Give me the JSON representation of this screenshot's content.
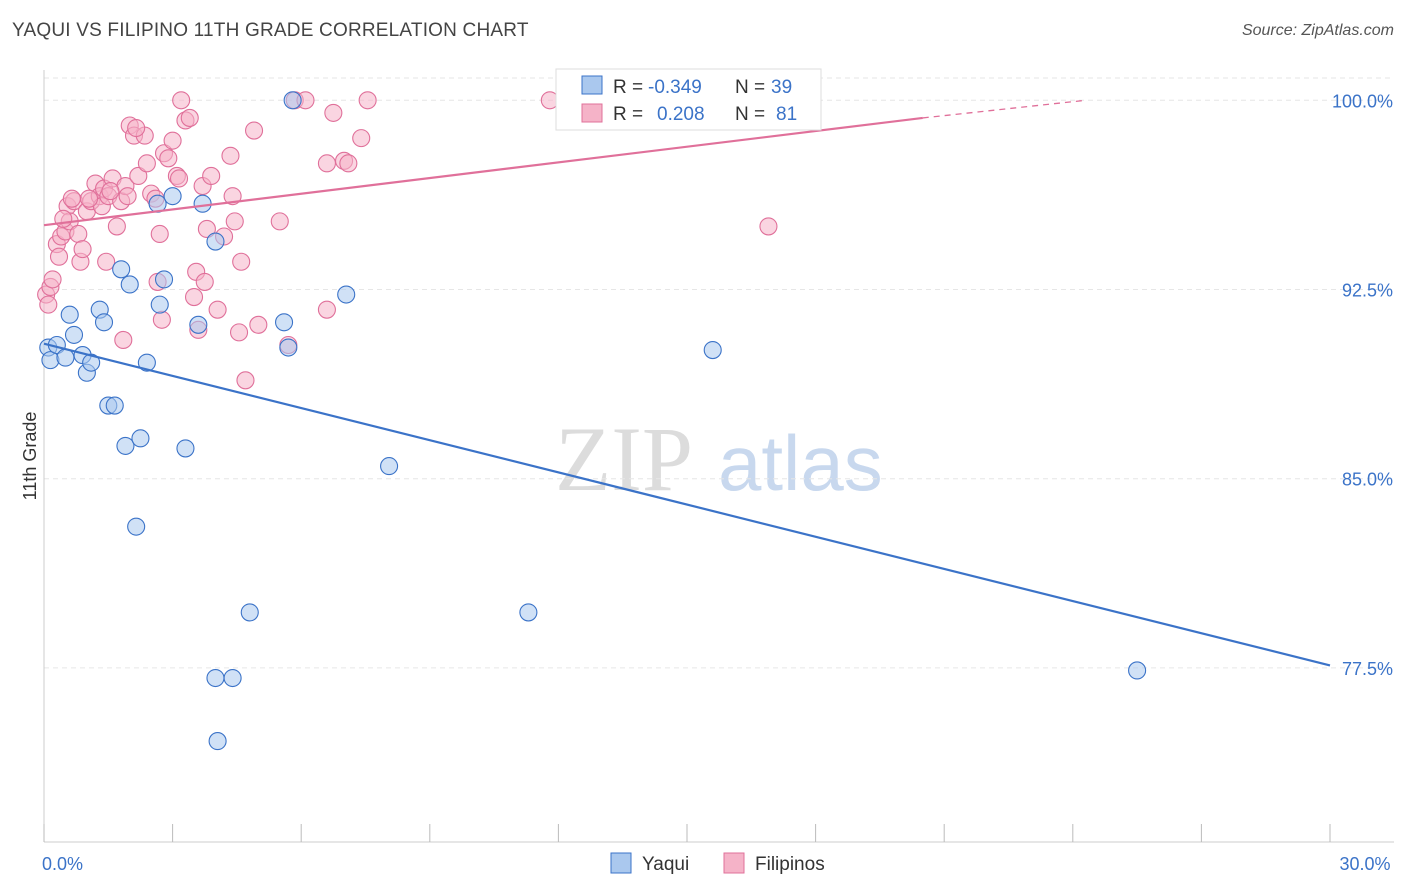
{
  "title": "YAQUI VS FILIPINO 11TH GRADE CORRELATION CHART",
  "source": "Source: ZipAtlas.com",
  "watermark": {
    "zip": "ZIP",
    "atlas": "atlas"
  },
  "colors": {
    "blue": "#3b73c8",
    "blue_fill": "#aac8ee",
    "pink": "#e0709a",
    "pink_fill": "#f5b3c8",
    "grid": "#e6e6e6",
    "axis": "#cccccc"
  },
  "legend": {
    "rows": [
      {
        "r_label": "R =",
        "r_value": "-0.349",
        "n_label": "N =",
        "n_value": "39",
        "series": "Yaqui"
      },
      {
        "r_label": "R =",
        "r_value": "0.208",
        "n_label": "N =",
        "n_value": "81",
        "series": "Filipinos"
      }
    ]
  },
  "chart_data": {
    "type": "scatter",
    "title": "YAQUI VS FILIPINO 11TH GRADE CORRELATION CHART",
    "xlabel": "",
    "ylabel": "11th Grade",
    "xlim": [
      0,
      30
    ],
    "ylim": [
      70.6,
      101.2
    ],
    "x_tick_labels": [
      {
        "value": 0,
        "label": "0.0%"
      },
      {
        "value": 30,
        "label": "30.0%"
      }
    ],
    "y_tick_labels": [
      {
        "value": 100,
        "label": "100.0%"
      },
      {
        "value": 92.5,
        "label": "92.5%"
      },
      {
        "value": 85,
        "label": "85.0%"
      },
      {
        "value": 77.5,
        "label": "77.5%"
      }
    ],
    "x_minor_ticks": [
      0,
      3,
      6,
      9,
      12,
      15,
      18,
      21,
      24,
      27,
      30
    ],
    "series": [
      {
        "name": "Yaqui",
        "color": "#3b73c8",
        "trend": {
          "x": [
            0,
            30
          ],
          "y": [
            90.35,
            77.6
          ],
          "dashed_from": null
        },
        "points": [
          [
            0.1,
            90.2
          ],
          [
            0.15,
            89.7
          ],
          [
            0.3,
            90.3
          ],
          [
            0.5,
            89.8
          ],
          [
            0.6,
            91.5
          ],
          [
            0.7,
            90.7
          ],
          [
            0.9,
            89.9
          ],
          [
            1.0,
            89.2
          ],
          [
            1.1,
            89.6
          ],
          [
            1.3,
            91.7
          ],
          [
            1.4,
            91.2
          ],
          [
            1.5,
            87.9
          ],
          [
            1.65,
            87.9
          ],
          [
            1.8,
            93.3
          ],
          [
            1.9,
            86.3
          ],
          [
            2.0,
            92.7
          ],
          [
            2.15,
            83.1
          ],
          [
            2.25,
            86.6
          ],
          [
            2.4,
            89.6
          ],
          [
            2.7,
            91.9
          ],
          [
            2.8,
            92.9
          ],
          [
            3.0,
            96.2
          ],
          [
            3.3,
            86.2
          ],
          [
            3.6,
            91.1
          ],
          [
            3.7,
            95.9
          ],
          [
            4.0,
            94.4
          ],
          [
            4.0,
            77.1
          ],
          [
            4.05,
            74.6
          ],
          [
            4.4,
            77.1
          ],
          [
            4.8,
            79.7
          ],
          [
            5.6,
            91.2
          ],
          [
            5.7,
            90.2
          ],
          [
            5.8,
            100.0
          ],
          [
            7.05,
            92.3
          ],
          [
            8.05,
            85.5
          ],
          [
            11.3,
            79.7
          ],
          [
            15.6,
            90.1
          ],
          [
            25.5,
            77.4
          ],
          [
            2.65,
            95.9
          ]
        ]
      },
      {
        "name": "Filipinos",
        "color": "#e0709a",
        "trend": {
          "x": [
            0,
            20.5
          ],
          "y": [
            95.05,
            99.3
          ],
          "dashed_from": 20.5,
          "dashed_to": [
            24.3,
            100.0
          ]
        },
        "points": [
          [
            0.05,
            92.3
          ],
          [
            0.1,
            91.9
          ],
          [
            0.15,
            92.6
          ],
          [
            0.2,
            92.9
          ],
          [
            0.3,
            94.3
          ],
          [
            0.35,
            93.8
          ],
          [
            0.4,
            94.6
          ],
          [
            0.5,
            94.8
          ],
          [
            0.55,
            95.8
          ],
          [
            0.6,
            95.2
          ],
          [
            0.7,
            96.0
          ],
          [
            0.8,
            94.7
          ],
          [
            0.85,
            93.6
          ],
          [
            0.9,
            94.1
          ],
          [
            1.0,
            95.6
          ],
          [
            1.1,
            96.0
          ],
          [
            1.2,
            96.7
          ],
          [
            1.3,
            96.2
          ],
          [
            1.35,
            95.8
          ],
          [
            1.4,
            96.5
          ],
          [
            1.45,
            93.6
          ],
          [
            1.5,
            96.2
          ],
          [
            1.6,
            96.9
          ],
          [
            1.7,
            95.0
          ],
          [
            1.8,
            96.0
          ],
          [
            1.85,
            90.5
          ],
          [
            1.9,
            96.6
          ],
          [
            2.0,
            99.0
          ],
          [
            2.1,
            98.6
          ],
          [
            2.2,
            97.0
          ],
          [
            2.35,
            98.6
          ],
          [
            2.4,
            97.5
          ],
          [
            2.5,
            96.3
          ],
          [
            2.6,
            96.1
          ],
          [
            2.65,
            92.8
          ],
          [
            2.7,
            94.7
          ],
          [
            2.75,
            91.3
          ],
          [
            2.8,
            97.9
          ],
          [
            2.9,
            97.7
          ],
          [
            3.0,
            98.4
          ],
          [
            3.1,
            97.0
          ],
          [
            3.15,
            96.9
          ],
          [
            3.2,
            100.0
          ],
          [
            3.3,
            99.2
          ],
          [
            3.4,
            99.3
          ],
          [
            3.5,
            92.2
          ],
          [
            3.55,
            93.2
          ],
          [
            3.6,
            90.9
          ],
          [
            3.7,
            96.6
          ],
          [
            3.8,
            94.9
          ],
          [
            3.9,
            97.0
          ],
          [
            4.05,
            91.7
          ],
          [
            4.2,
            94.6
          ],
          [
            4.35,
            97.8
          ],
          [
            4.4,
            96.2
          ],
          [
            4.45,
            95.2
          ],
          [
            4.55,
            90.8
          ],
          [
            4.6,
            93.6
          ],
          [
            4.7,
            88.9
          ],
          [
            4.9,
            98.8
          ],
          [
            5.0,
            91.1
          ],
          [
            5.5,
            95.2
          ],
          [
            5.7,
            90.3
          ],
          [
            5.85,
            100.0
          ],
          [
            6.1,
            100.0
          ],
          [
            6.6,
            91.7
          ],
          [
            6.6,
            97.5
          ],
          [
            6.75,
            99.5
          ],
          [
            7.0,
            97.6
          ],
          [
            7.1,
            97.5
          ],
          [
            7.4,
            98.5
          ],
          [
            7.55,
            100.0
          ],
          [
            11.8,
            100.0
          ],
          [
            16.9,
            95.0
          ],
          [
            1.95,
            96.2
          ],
          [
            2.15,
            98.9
          ],
          [
            0.45,
            95.3
          ],
          [
            0.65,
            96.1
          ],
          [
            1.05,
            96.1
          ],
          [
            1.55,
            96.4
          ],
          [
            3.75,
            92.8
          ]
        ]
      }
    ]
  }
}
